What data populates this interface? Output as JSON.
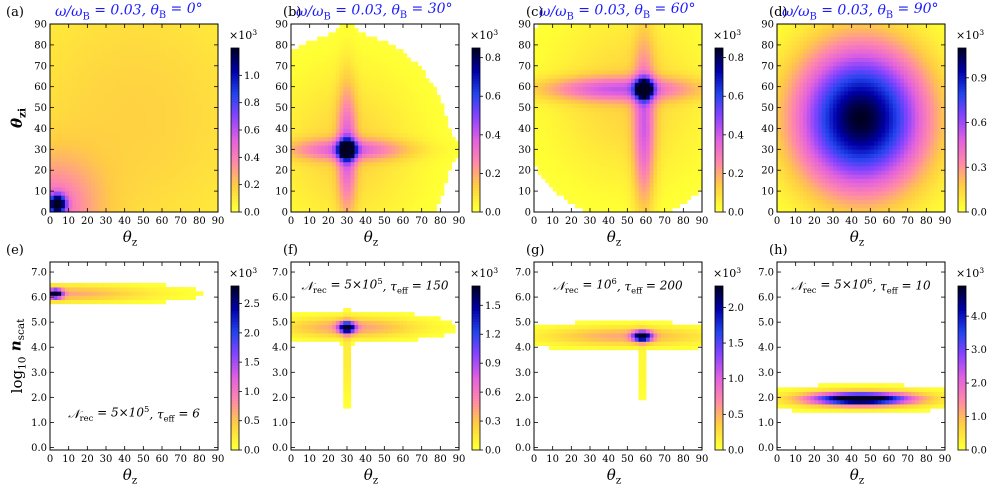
{
  "figure": {
    "row_labels": {
      "top_ylabel_sym": "θ",
      "top_ylabel_sub": "zi",
      "bottom_ylabel_log": "log",
      "bottom_ylabel_logsub": "10",
      "bottom_ylabel_sym": "n",
      "bottom_ylabel_sub": "scat"
    },
    "xlabel_sym": "θ",
    "xlabel_sub": "z",
    "colormap": [
      "#ffffff",
      "#ffff33",
      "#ffcc44",
      "#ff88aa",
      "#e060e0",
      "#8844ff",
      "#2244ee",
      "#0000aa",
      "#000022"
    ]
  },
  "chart_data": [
    {
      "type": "heatmap",
      "panel_tag": "(a)",
      "title": "ω/ω_B = 0.03, θ_B = 0°",
      "title_parts": [
        "ω/ω",
        "B",
        " = 0.03, θ",
        "B",
        " = 0°"
      ],
      "xlabel": "θz",
      "ylabel": "θzi",
      "xlim": [
        0,
        90
      ],
      "ylim": [
        0,
        90
      ],
      "xticks": [
        "0",
        "10",
        "20",
        "30",
        "40",
        "50",
        "60",
        "70",
        "80",
        "90"
      ],
      "yticks": [
        "0",
        "10",
        "20",
        "30",
        "40",
        "50",
        "60",
        "70",
        "80",
        "90"
      ],
      "colorbar": {
        "multiplier": "×10",
        "exp": "3",
        "min": 0.0,
        "max": 1.2,
        "ticks": [
          "0.0",
          "0.2",
          "0.4",
          "0.6",
          "0.8",
          "1.0"
        ],
        "tick_values": [
          0.0,
          0.2,
          0.4,
          0.6,
          0.8,
          1.0
        ]
      },
      "blobs": [
        {
          "x": 4,
          "y": 4,
          "sx": 3,
          "sy": 3,
          "amp": 1.15
        },
        {
          "x": 0,
          "y": 0,
          "sx": 18,
          "sy": 18,
          "amp": 0.35
        },
        {
          "x": 45,
          "y": 45,
          "sx": 60,
          "sy": 60,
          "amp": 0.18
        }
      ],
      "annotation": ""
    },
    {
      "type": "heatmap",
      "panel_tag": "(b)",
      "title": "ω/ω_B = 0.03, θ_B = 30°",
      "title_parts": [
        "ω/ω",
        "B",
        " = 0.03, θ",
        "B",
        " = 30°"
      ],
      "xlabel": "θz",
      "ylabel": "",
      "xlim": [
        0,
        90
      ],
      "ylim": [
        0,
        90
      ],
      "xticks": [
        "0",
        "10",
        "20",
        "30",
        "40",
        "50",
        "60",
        "70",
        "80",
        "90"
      ],
      "yticks": [
        "0",
        "10",
        "20",
        "30",
        "40",
        "50",
        "60",
        "70",
        "80",
        "90"
      ],
      "colorbar": {
        "multiplier": "×10",
        "exp": "3",
        "min": 0.0,
        "max": 0.85,
        "ticks": [
          "0.0",
          "0.2",
          "0.4",
          "0.6",
          "0.8"
        ],
        "tick_values": [
          0.0,
          0.2,
          0.4,
          0.6,
          0.8
        ]
      },
      "blobs": [
        {
          "x": 30,
          "y": 30,
          "sx": 3,
          "sy": 3,
          "amp": 0.85
        },
        {
          "x": 30,
          "y": 30,
          "sx": 22,
          "sy": 3.5,
          "amp": 0.28
        },
        {
          "x": 30,
          "y": 30,
          "sx": 3.5,
          "sy": 22,
          "amp": 0.28
        },
        {
          "x": 30,
          "y": 30,
          "sx": 28,
          "sy": 28,
          "amp": 0.12
        }
      ],
      "annotation": ""
    },
    {
      "type": "heatmap",
      "panel_tag": "(c)",
      "title": "ω/ω_B = 0.03, θ_B = 60°",
      "title_parts": [
        "ω/ω",
        "B",
        " = 0.03, θ",
        "B",
        " = 60°"
      ],
      "xlabel": "θz",
      "ylabel": "",
      "xlim": [
        0,
        90
      ],
      "ylim": [
        0,
        90
      ],
      "xticks": [
        "0",
        "10",
        "20",
        "30",
        "40",
        "50",
        "60",
        "70",
        "80",
        "90"
      ],
      "yticks": [
        "0",
        "10",
        "20",
        "30",
        "40",
        "50",
        "60",
        "70",
        "80",
        "90"
      ],
      "colorbar": {
        "multiplier": "×10",
        "exp": "3",
        "min": 0.0,
        "max": 0.85,
        "ticks": [
          "0.0",
          "0.2",
          "0.4",
          "0.6",
          "0.8"
        ],
        "tick_values": [
          0.0,
          0.2,
          0.4,
          0.6,
          0.8
        ]
      },
      "blobs": [
        {
          "x": 59,
          "y": 59,
          "sx": 3,
          "sy": 3,
          "amp": 0.85
        },
        {
          "x": 45,
          "y": 59,
          "sx": 30,
          "sy": 4,
          "amp": 0.3
        },
        {
          "x": 59,
          "y": 40,
          "sx": 4,
          "sy": 28,
          "amp": 0.3
        },
        {
          "x": 50,
          "y": 55,
          "sx": 30,
          "sy": 30,
          "amp": 0.12
        }
      ],
      "annotation": ""
    },
    {
      "type": "heatmap",
      "panel_tag": "(d)",
      "title": "ω/ω_B = 0.03, θ_B = 90°",
      "title_parts": [
        "ω/ω",
        "B",
        " = 0.03, θ",
        "B",
        " = 90°"
      ],
      "xlabel": "θz",
      "ylabel": "",
      "xlim": [
        0,
        90
      ],
      "ylim": [
        0,
        90
      ],
      "xticks": [
        "0",
        "10",
        "20",
        "30",
        "40",
        "50",
        "60",
        "70",
        "80",
        "90"
      ],
      "yticks": [
        "0",
        "10",
        "20",
        "30",
        "40",
        "50",
        "60",
        "70",
        "80",
        "90"
      ],
      "colorbar": {
        "multiplier": "×10",
        "exp": "3",
        "min": 0.0,
        "max": 1.1,
        "ticks": [
          "0.0",
          "0.3",
          "0.6",
          "0.9"
        ],
        "tick_values": [
          0.0,
          0.3,
          0.6,
          0.9
        ]
      },
      "blobs": [
        {
          "x": 45,
          "y": 45,
          "sx": 24,
          "sy": 24,
          "amp": 1.1
        }
      ],
      "annotation": ""
    },
    {
      "type": "heatmap",
      "panel_tag": "(e)",
      "title": "",
      "xlabel": "θz",
      "ylabel": "log10 nscat",
      "xlim": [
        0,
        90
      ],
      "ylim": [
        -0.1,
        7.4
      ],
      "xticks": [
        "0",
        "10",
        "20",
        "30",
        "40",
        "50",
        "60",
        "70",
        "80",
        "90"
      ],
      "yticks": [
        "0.0",
        "1.0",
        "2.0",
        "3.0",
        "4.0",
        "5.0",
        "6.0",
        "7.0"
      ],
      "colorbar": {
        "multiplier": "×10",
        "exp": "3",
        "min": 0.0,
        "max": 2.8,
        "ticks": [
          "0.0",
          "0.5",
          "1.0",
          "1.5",
          "2.0",
          "2.5"
        ],
        "tick_values": [
          0.0,
          0.5,
          1.0,
          1.5,
          2.0,
          2.5
        ]
      },
      "blobs": [
        {
          "x": 3,
          "y": 6.15,
          "sx": 2.5,
          "sy": 0.12,
          "amp": 2.8
        },
        {
          "x": 3,
          "y": 6.15,
          "sx": 35,
          "sy": 0.22,
          "amp": 0.7
        }
      ],
      "annotation": "𝒩rec = 5×10⁵, τeff = 6",
      "annotation_parts": [
        "𝒩",
        "rec",
        " = 5×10",
        "5",
        ", τ",
        "eff",
        " = 6"
      ],
      "annotation_pos": "bottom-center"
    },
    {
      "type": "heatmap",
      "panel_tag": "(f)",
      "title": "",
      "xlabel": "θz",
      "ylabel": "",
      "xlim": [
        0,
        90
      ],
      "ylim": [
        -0.1,
        7.4
      ],
      "xticks": [
        "0",
        "10",
        "20",
        "30",
        "40",
        "50",
        "60",
        "70",
        "80",
        "90"
      ],
      "yticks": [
        "0.0",
        "1.0",
        "2.0",
        "3.0",
        "4.0",
        "5.0",
        "6.0",
        "7.0"
      ],
      "colorbar": {
        "multiplier": "×10",
        "exp": "3",
        "min": 0.0,
        "max": 1.7,
        "ticks": [
          "0.0",
          "0.3",
          "0.6",
          "0.9",
          "1.2",
          "1.5"
        ],
        "tick_values": [
          0.0,
          0.3,
          0.6,
          0.9,
          1.2,
          1.5
        ]
      },
      "blobs": [
        {
          "x": 30,
          "y": 4.8,
          "sx": 3,
          "sy": 0.15,
          "amp": 1.7
        },
        {
          "x": 32,
          "y": 4.8,
          "sx": 25,
          "sy": 0.28,
          "amp": 0.45
        },
        {
          "x": 30,
          "y": 3.5,
          "sx": 1.2,
          "sy": 1.2,
          "amp": 0.18
        }
      ],
      "annotation": "𝒩rec = 5×10⁵, τeff = 150",
      "annotation_parts": [
        "𝒩",
        "rec",
        " = 5×10",
        "5",
        ", τ",
        "eff",
        " = 150"
      ],
      "annotation_pos": "top-center"
    },
    {
      "type": "heatmap",
      "panel_tag": "(g)",
      "title": "",
      "xlabel": "θz",
      "ylabel": "",
      "xlim": [
        0,
        90
      ],
      "ylim": [
        -0.1,
        7.4
      ],
      "xticks": [
        "0",
        "10",
        "20",
        "30",
        "40",
        "50",
        "60",
        "70",
        "80",
        "90"
      ],
      "yticks": [
        "0.0",
        "1.0",
        "2.0",
        "3.0",
        "4.0",
        "5.0",
        "6.0",
        "7.0"
      ],
      "colorbar": {
        "multiplier": "×10",
        "exp": "3",
        "min": 0.0,
        "max": 2.3,
        "ticks": [
          "0.0",
          "0.5",
          "1.0",
          "1.5",
          "2.0"
        ],
        "tick_values": [
          0.0,
          0.5,
          1.0,
          1.5,
          2.0
        ]
      },
      "blobs": [
        {
          "x": 58,
          "y": 4.45,
          "sx": 3.5,
          "sy": 0.14,
          "amp": 2.3
        },
        {
          "x": 48,
          "y": 4.45,
          "sx": 30,
          "sy": 0.26,
          "amp": 0.55
        },
        {
          "x": 58,
          "y": 3.2,
          "sx": 1.2,
          "sy": 1.0,
          "amp": 0.15
        }
      ],
      "annotation": "𝒩rec = 10⁶, τeff = 200",
      "annotation_parts": [
        "𝒩",
        "rec",
        " = 10",
        "6",
        ", τ",
        "eff",
        " = 200"
      ],
      "annotation_pos": "top-center"
    },
    {
      "type": "heatmap",
      "panel_tag": "(h)",
      "title": "",
      "xlabel": "θz",
      "ylabel": "",
      "xlim": [
        0,
        90
      ],
      "ylim": [
        -0.1,
        7.4
      ],
      "xticks": [
        "0",
        "10",
        "20",
        "30",
        "40",
        "50",
        "60",
        "70",
        "80",
        "90"
      ],
      "yticks": [
        "0.0",
        "1.0",
        "2.0",
        "3.0",
        "4.0",
        "5.0",
        "6.0",
        "7.0"
      ],
      "colorbar": {
        "multiplier": "×10",
        "exp": "3",
        "min": 0.0,
        "max": 4.9,
        "ticks": [
          "0.0",
          "1.0",
          "2.0",
          "3.0",
          "4.0"
        ],
        "tick_values": [
          0.0,
          1.0,
          2.0,
          3.0,
          4.0
        ]
      },
      "blobs": [
        {
          "x": 45,
          "y": 1.95,
          "sx": 17,
          "sy": 0.16,
          "amp": 4.9
        },
        {
          "x": 45,
          "y": 1.95,
          "sx": 28,
          "sy": 0.25,
          "amp": 1.2
        }
      ],
      "annotation": "𝒩rec = 5×10⁶, τeff = 10",
      "annotation_parts": [
        "𝒩",
        "rec",
        " = 5×10",
        "6",
        ", τ",
        "eff",
        " = 10"
      ],
      "annotation_pos": "top-center"
    }
  ]
}
